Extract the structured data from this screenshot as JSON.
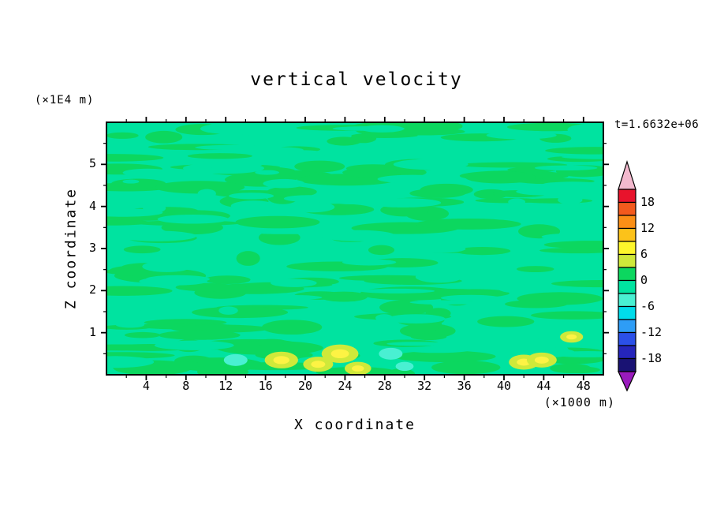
{
  "title": "vertical velocity",
  "timestamp": "t=1.6632e+06",
  "axes": {
    "x_label": "X coordinate",
    "x_unit": "(×1000 m)",
    "y_label": "Z coordinate",
    "y_unit": "(×1E4 m)",
    "x_range": [
      0,
      50
    ],
    "y_range": [
      0,
      6
    ],
    "x_ticks": [
      4,
      8,
      12,
      16,
      20,
      24,
      28,
      32,
      36,
      40,
      44,
      48
    ],
    "y_ticks": [
      1,
      2,
      3,
      4,
      5
    ],
    "x_minor_step": 2,
    "y_minor_step": 0.5
  },
  "colorbar": {
    "labels": [
      "18",
      "12",
      "6",
      "0",
      "-6",
      "-12",
      "-18"
    ],
    "levels": [
      21,
      18,
      15,
      12,
      9,
      6,
      3,
      0,
      -3,
      -6,
      -9,
      -12,
      -15,
      -18,
      -21
    ],
    "segment_colors": [
      "#e8132c",
      "#f35a1d",
      "#fb8f16",
      "#fcc21a",
      "#fdf62b",
      "#cfe93a",
      "#0cd75f",
      "#00e3a0",
      "#49f0d2",
      "#00dcea",
      "#2e9df6",
      "#2b50e8",
      "#2525bb",
      "#191273"
    ],
    "arrow_top_color": "#f3b9ce",
    "arrow_bottom_color": "#9a1bbd"
  },
  "colors": {
    "background_field": "#00e3a0",
    "patch_field": "#0cd75f",
    "warm_ring": "#cfe93a",
    "warm_core": "#fdf344",
    "cool_spot": "#49f0d2",
    "frame": "#000000",
    "text": "#000000"
  },
  "chart_data": {
    "type": "heatmap",
    "title": "vertical velocity",
    "xlabel": "X coordinate (×1000 m)",
    "ylabel": "Z coordinate (×1E4 m)",
    "time_label": "t=1.6632e+06",
    "x_range": [
      0,
      50
    ],
    "z_range": [
      0,
      6
    ],
    "contour_levels": [
      -21,
      -18,
      -15,
      -12,
      -9,
      -6,
      -3,
      0,
      3,
      6,
      9,
      12,
      15,
      18,
      21
    ],
    "field_summary": "Vertical velocity is near zero (-3 to +3) over most of the domain, shown as mottled green streaks; weak positive plumes (+3 to +9, yellow) hug the surface (z < 1) near x ≈ 17, 21-25 and 42-44, with weak negative pockets (-3 to -6, cyan) near x ≈ 13 and 28-30.",
    "hotspots": [
      {
        "x": 13.0,
        "z": 0.35,
        "value": -5
      },
      {
        "x": 17.6,
        "z": 0.35,
        "value": 6
      },
      {
        "x": 21.3,
        "z": 0.25,
        "value": 5
      },
      {
        "x": 23.5,
        "z": 0.5,
        "value": 7
      },
      {
        "x": 25.3,
        "z": 0.15,
        "value": 4
      },
      {
        "x": 28.6,
        "z": 0.5,
        "value": -5
      },
      {
        "x": 30.0,
        "z": 0.2,
        "value": -3
      },
      {
        "x": 42.0,
        "z": 0.3,
        "value": 5
      },
      {
        "x": 43.8,
        "z": 0.35,
        "value": 5
      },
      {
        "x": 46.8,
        "z": 0.9,
        "value": 3
      }
    ],
    "legend_position": "right",
    "grid": false
  }
}
